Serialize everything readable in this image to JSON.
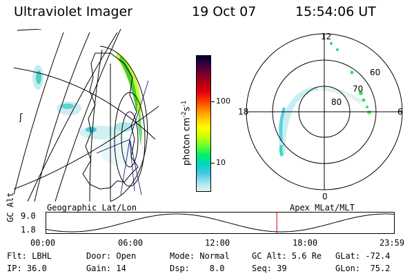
{
  "header": {
    "instrument": "Ultraviolet Imager",
    "date": "19 Oct 07",
    "time": "15:54:06 UT"
  },
  "colorbar": {
    "title": "photon cm",
    "exp1": "-2",
    "mid": "s",
    "exp2": "-1",
    "ticks": [
      "100",
      "10"
    ],
    "colors": [
      "#000033",
      "#3a0040",
      "#7a0030",
      "#b30010",
      "#e0000c",
      "#ff3a00",
      "#ff8a00",
      "#ffcc00",
      "#ffff00",
      "#c8ff00",
      "#66ff33",
      "#00ee66",
      "#00d8c0",
      "#40c8e0",
      "#a0e0f0",
      "#e4f4f6"
    ]
  },
  "left_map": {
    "caption": "Geographic Lat/Lon",
    "marker": "ʃ"
  },
  "right_map": {
    "caption": "Apex MLat/MLT",
    "mlt_labels": [
      "12",
      "18",
      "6",
      "0"
    ],
    "lat_labels": [
      "60",
      "70",
      "80"
    ]
  },
  "altitude_plot": {
    "ylabel": "GC Alt",
    "yticks": [
      "9.0",
      "1.8"
    ],
    "xticks": [
      "00:00",
      "06:00",
      "12:00",
      "18:00",
      "23:59"
    ],
    "marker_hours": 15.9,
    "line_color": "#000000",
    "marker_color": "#cc0000"
  },
  "status": {
    "flt": "Flt: LBHL",
    "ip": "IP: 36.0",
    "door": "Door: Open",
    "gain": "Gain: 14",
    "mode": "Mode: Normal",
    "dsp": "Dsp:    8.0",
    "gcalt": "GC Alt: 5.6 Re",
    "seq": "Seq: 39",
    "glat": "GLat: -72.4",
    "glon": "GLon:  75.2"
  }
}
